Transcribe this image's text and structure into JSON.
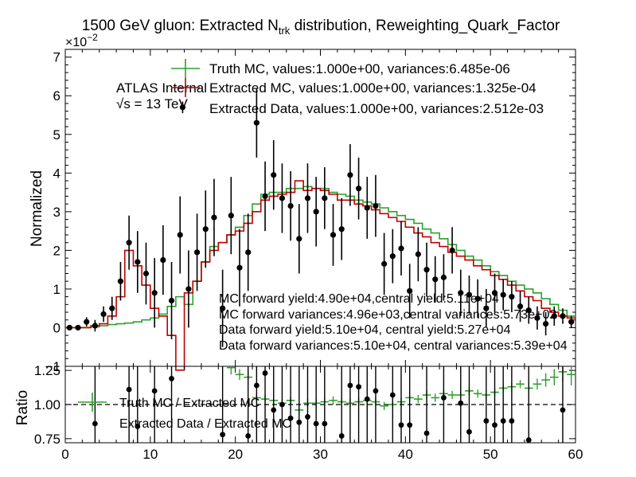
{
  "title_main": "1500 GeV gluon: Extracted N",
  "title_sub": "trk",
  "title_tail": " distribution, Reweighting_Quark_Factor",
  "ylabel": "Normalized",
  "ratio_ylabel": "Ratio",
  "exponent_base": "×10",
  "exponent_power": "−2",
  "atlas_label": "ATLAS Internal",
  "energy_label": "√s = 13 TeV",
  "legend": [
    "Truth MC, values:1.000e+00, variances:6.485e-06",
    "Extracted MC, values:1.000e+00, variances:1.325e-04",
    "Extracted Data, values:1.000e+00, variances:2.512e-03"
  ],
  "yield_notes": [
    "MC forward yield:4.90e+04,central yield:5.11e+04",
    "MC forward variances:4.96e+03,central variances:5.73e+02",
    "Data forward yield:5.10e+04, central yield:5.27e+04",
    "Data forward variances:5.10e+04, central variances:5.39e+04"
  ],
  "ratio_legend": [
    "Truth MC / Extracted MC",
    "Extracted Data / Extracted MC"
  ],
  "colors": {
    "truth": "#2ca02c",
    "extracted_mc": "#c00000",
    "data": "#000000"
  },
  "chart_data": [
    {
      "type": "line",
      "panel": "main",
      "xlim": [
        0,
        60
      ],
      "ylim": [
        -1,
        7.2
      ],
      "y_scale_note": "values ×1e-2",
      "xticks": [
        0,
        10,
        20,
        30,
        40,
        50,
        60
      ],
      "yticks": [
        -1,
        0,
        1,
        2,
        3,
        4,
        5,
        6,
        7
      ],
      "bin_edges": [
        0,
        1,
        2,
        3,
        4,
        5,
        6,
        7,
        8,
        9,
        10,
        11,
        12,
        13,
        14,
        15,
        16,
        17,
        18,
        19,
        20,
        21,
        22,
        23,
        24,
        25,
        26,
        27,
        28,
        29,
        30,
        31,
        32,
        33,
        34,
        35,
        36,
        37,
        38,
        39,
        40,
        41,
        42,
        43,
        44,
        45,
        46,
        47,
        48,
        49,
        50,
        51,
        52,
        53,
        54,
        55,
        56,
        57,
        58,
        59,
        60
      ],
      "series": [
        {
          "name": "Truth MC",
          "style": "step",
          "values": [
            0,
            0,
            0,
            0.02,
            0.05,
            0.08,
            0.1,
            0.12,
            0.15,
            0.2,
            0.25,
            0.35,
            0.55,
            0.8,
            0.6,
            1.2,
            1.7,
            2.1,
            2.2,
            2.4,
            2.6,
            2.9,
            3.2,
            3.45,
            3.5,
            3.5,
            3.6,
            3.6,
            3.65,
            3.6,
            3.6,
            3.5,
            3.45,
            3.4,
            3.3,
            3.25,
            3.2,
            3.1,
            3.0,
            2.9,
            2.8,
            2.7,
            2.55,
            2.45,
            2.3,
            2.15,
            2.0,
            1.85,
            1.75,
            1.6,
            1.45,
            1.35,
            1.2,
            1.1,
            1.0,
            0.9,
            0.75,
            0.6,
            0.45,
            0.3
          ]
        },
        {
          "name": "Extracted MC",
          "style": "step",
          "values": [
            0,
            0,
            0,
            0.05,
            0.1,
            0.3,
            0.8,
            2.0,
            1.6,
            1.1,
            0.5,
            0.3,
            -0.2,
            -1.1,
            0.9,
            1.2,
            1.7,
            2.0,
            2.2,
            2.4,
            2.5,
            2.7,
            3.0,
            3.3,
            3.4,
            3.45,
            3.5,
            3.8,
            3.55,
            3.6,
            3.55,
            3.45,
            3.3,
            3.3,
            3.2,
            3.15,
            3.05,
            2.95,
            2.85,
            2.75,
            2.6,
            2.45,
            2.35,
            2.2,
            2.1,
            1.95,
            1.85,
            1.75,
            1.6,
            1.5,
            1.35,
            1.25,
            1.1,
            0.95,
            0.8,
            0.7,
            0.5,
            0.4,
            0.3,
            0.25
          ]
        }
      ],
      "points": {
        "name": "Extracted Data",
        "x": [
          0.5,
          1.5,
          2.5,
          3.5,
          4.5,
          5.5,
          6.5,
          7.5,
          8.5,
          9.5,
          10.5,
          11.5,
          12.5,
          13.5,
          14.5,
          15.5,
          16.5,
          17.5,
          18.5,
          19.5,
          20.5,
          21.5,
          22.5,
          23.5,
          24.5,
          25.5,
          26.5,
          27.5,
          28.5,
          29.5,
          30.5,
          31.5,
          32.5,
          33.5,
          34.5,
          35.5,
          36.5,
          37.5,
          38.5,
          39.5,
          40.5,
          41.5,
          42.5,
          43.5,
          44.5,
          45.5,
          46.5,
          47.5,
          48.5,
          49.5,
          50.5,
          51.5,
          52.5,
          53.5,
          54.5,
          55.5,
          56.5,
          57.5,
          58.5,
          59.5
        ],
        "y": [
          0,
          0,
          0.15,
          0.05,
          0.35,
          0.5,
          1.2,
          2.2,
          1.7,
          1.4,
          0.9,
          1.75,
          0.7,
          2.4,
          1.0,
          1.95,
          2.55,
          2.85,
          0.5,
          2.9,
          1.55,
          1.95,
          5.3,
          3.4,
          3.95,
          3.35,
          3.15,
          2.3,
          3.35,
          3.0,
          3.35,
          2.4,
          2.55,
          3.95,
          3.6,
          3.1,
          3.15,
          1.65,
          1.85,
          2.05,
          0.95,
          1.9,
          1.5,
          1.25,
          1.3,
          2.0,
          0.9,
          0.85,
          0.75,
          0.5,
          0.9,
          0.85,
          0.8,
          0.55,
          0.45,
          0.25,
          0.1,
          0.3,
          0.3,
          0.15
        ],
        "yerr": [
          0.05,
          0.05,
          0.12,
          0.15,
          0.2,
          0.3,
          0.5,
          0.7,
          0.8,
          0.8,
          0.9,
          0.9,
          1.0,
          1.0,
          1.0,
          1.0,
          1.0,
          1.0,
          1.0,
          1.0,
          1.0,
          1.0,
          0.9,
          0.9,
          0.9,
          0.9,
          0.9,
          0.9,
          0.9,
          0.9,
          0.8,
          0.8,
          0.8,
          0.8,
          0.8,
          0.8,
          0.8,
          0.8,
          0.7,
          0.7,
          0.7,
          0.7,
          0.7,
          0.6,
          0.6,
          0.6,
          0.6,
          0.5,
          0.5,
          0.5,
          0.5,
          0.4,
          0.4,
          0.4,
          0.35,
          0.3,
          0.3,
          0.25,
          0.2,
          0.15
        ]
      },
      "extra_point": {
        "x": 13.8,
        "y": 5.7,
        "yerr": 0.15
      }
    },
    {
      "type": "line",
      "panel": "ratio",
      "xlim": [
        0,
        60
      ],
      "ylim": [
        0.72,
        1.28
      ],
      "xticks": [
        0,
        10,
        20,
        30,
        40,
        50,
        60
      ],
      "yticks": [
        0.75,
        1.0,
        1.25
      ],
      "xlabels": [
        "0",
        "10",
        "20",
        "30",
        "40",
        "50",
        "60"
      ],
      "ylabels": [
        "0.75",
        "1.00",
        "1.25"
      ],
      "reference_line": 1.0,
      "series": [
        {
          "name": "Truth MC / Extracted MC",
          "style": "errorbar",
          "x": [
            19.5,
            20.5,
            21.5,
            22.5,
            23.5,
            24.5,
            25.5,
            26.5,
            27.5,
            28.5,
            29.5,
            30.5,
            31.5,
            32.5,
            33.5,
            34.5,
            35.5,
            36.5,
            37.5,
            38.5,
            39.5,
            40.5,
            41.5,
            42.5,
            43.5,
            44.5,
            45.5,
            46.5,
            47.5,
            48.5,
            49.5,
            50.5,
            51.5,
            52.5,
            53.5,
            54.5,
            55.5,
            56.5,
            57.5,
            58.5,
            59.5
          ],
          "y": [
            1.27,
            1.22,
            1.2,
            1.05,
            1.04,
            1.03,
            1.01,
            1.03,
            0.96,
            1.01,
            1.01,
            1.02,
            1.03,
            1.02,
            1.01,
            1.02,
            1.03,
            1.02,
            0.99,
            1.0,
            1.02,
            1.05,
            1.04,
            1.07,
            1.05,
            1.08,
            1.07,
            1.07,
            1.1,
            1.08,
            1.07,
            1.09,
            1.12,
            1.13,
            1.15,
            1.12,
            1.15,
            1.18,
            1.2,
            1.24,
            1.22
          ],
          "yerr": [
            0.05,
            0.04,
            0.04,
            0.03,
            0.03,
            0.03,
            0.03,
            0.03,
            0.03,
            0.03,
            0.03,
            0.03,
            0.03,
            0.03,
            0.03,
            0.03,
            0.03,
            0.03,
            0.03,
            0.03,
            0.03,
            0.03,
            0.03,
            0.03,
            0.03,
            0.03,
            0.03,
            0.03,
            0.03,
            0.03,
            0.03,
            0.03,
            0.03,
            0.03,
            0.03,
            0.04,
            0.04,
            0.05,
            0.06,
            0.07,
            0.08
          ]
        },
        {
          "name": "Extracted Data / Extracted MC",
          "style": "points",
          "x": [
            3.5,
            7.5,
            8.5,
            10.5,
            12.5,
            18.5,
            21.5,
            22.5,
            23.5,
            24.5,
            25.5,
            26.5,
            27.5,
            28.5,
            29.5,
            30.5,
            32.5,
            33.5,
            34.5,
            35.5,
            36.5,
            38.5,
            39.5,
            40.5,
            42.5,
            44.5,
            46.5,
            47.5,
            49.5,
            50.5,
            51.5,
            52.5,
            54.5,
            58.5
          ],
          "y": [
            0.86,
            1.11,
            0.84,
            1.1,
            1.19,
            0.78,
            0.77,
            1.14,
            1.23,
            0.96,
            1.0,
            0.9,
            0.87,
            0.91,
            0.86,
            0.86,
            0.77,
            1.14,
            1.13,
            1.04,
            1.1,
            1.07,
            0.85,
            0.85,
            0.79,
            1.05,
            1.01,
            0.8,
            0.88,
            0.85,
            0.88,
            0.88,
            0.74,
            0.96
          ]
        }
      ]
    }
  ]
}
